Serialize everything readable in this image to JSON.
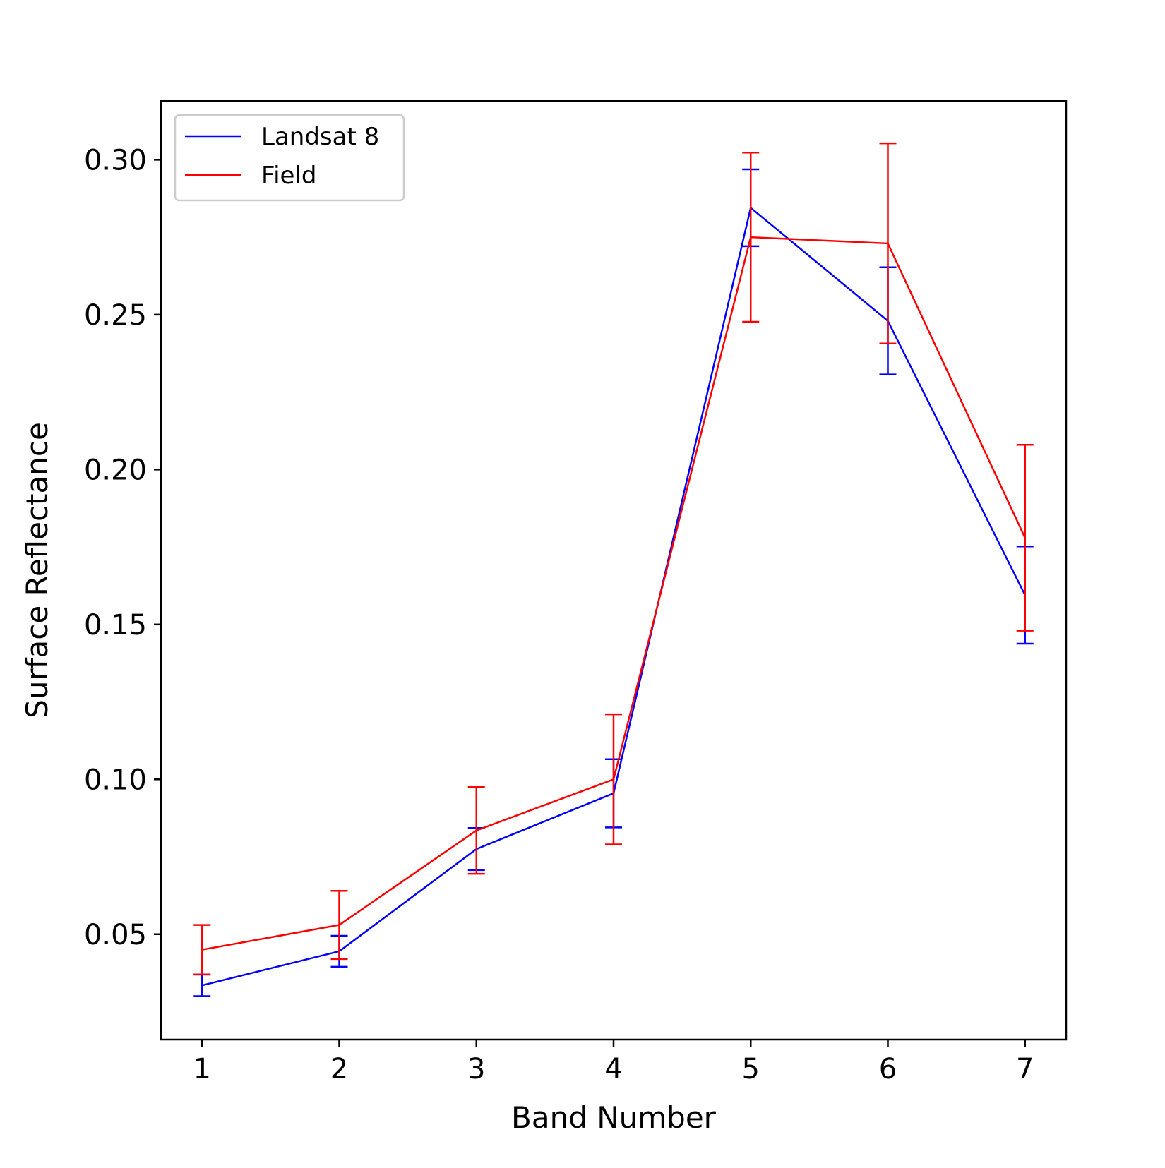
{
  "chart_data": {
    "type": "line",
    "xlabel": "Band Number",
    "ylabel": "Surface Reflectance",
    "x": [
      1,
      2,
      3,
      4,
      5,
      6,
      7
    ],
    "xticks": [
      "1",
      "2",
      "3",
      "4",
      "5",
      "6",
      "7"
    ],
    "xlim": [
      0.7,
      7.3
    ],
    "ylim": [
      0.016,
      0.319
    ],
    "yticks": [
      "0.05",
      "0.10",
      "0.15",
      "0.20",
      "0.25",
      "0.30"
    ],
    "grid": false,
    "legend_position": "top-left",
    "series": [
      {
        "name": "Landsat 8",
        "color": "#0000ff",
        "values": [
          0.0335,
          0.0445,
          0.0775,
          0.0955,
          0.2845,
          0.248,
          0.1595
        ],
        "error": [
          0.0035,
          0.005,
          0.0068,
          0.011,
          0.0124,
          0.0173,
          0.0157
        ]
      },
      {
        "name": "Field",
        "color": "#ff0000",
        "values": [
          0.045,
          0.053,
          0.0835,
          0.1,
          0.275,
          0.273,
          0.178
        ],
        "error": [
          0.008,
          0.011,
          0.014,
          0.021,
          0.0273,
          0.0323,
          0.03
        ]
      }
    ]
  }
}
